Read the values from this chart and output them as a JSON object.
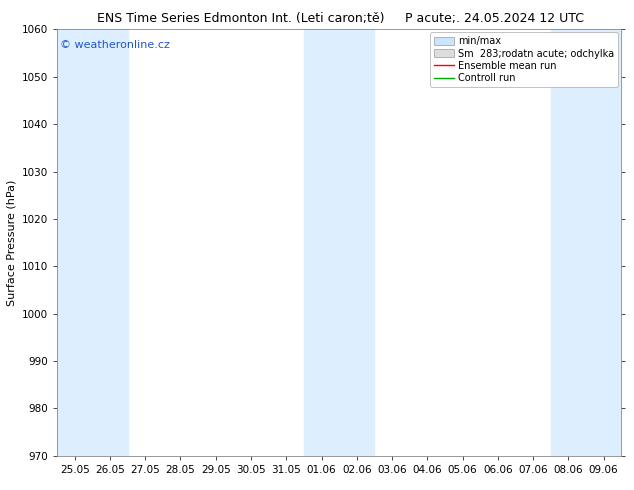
{
  "title_left": "ENS Time Series Edmonton Int. (Leti caron;tě)",
  "title_right": "P acute;. 24.05.2024 12 UTC",
  "ylabel": "Surface Pressure (hPa)",
  "ylim": [
    970,
    1060
  ],
  "yticks": [
    970,
    980,
    990,
    1000,
    1010,
    1020,
    1030,
    1040,
    1050,
    1060
  ],
  "xlabels": [
    "25.05",
    "26.05",
    "27.05",
    "28.05",
    "29.05",
    "30.05",
    "31.05",
    "01.06",
    "02.06",
    "03.06",
    "04.06",
    "05.06",
    "06.06",
    "07.06",
    "08.06",
    "09.06"
  ],
  "bg_color": "#ffffff",
  "band_color_light": "#ddeeff",
  "band_color_dark": "#ffffff",
  "watermark": "© weatheronline.cz",
  "title_fontsize": 9,
  "tick_fontsize": 7.5,
  "ylabel_fontsize": 8,
  "legend_fontsize": 7,
  "watermark_fontsize": 8
}
